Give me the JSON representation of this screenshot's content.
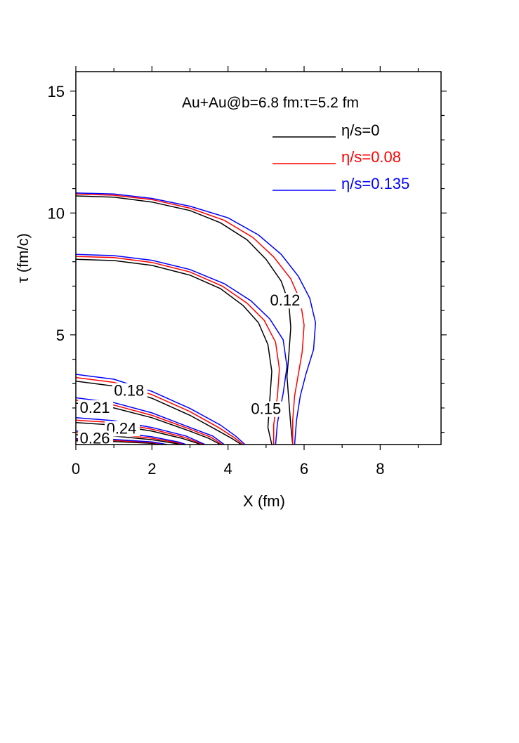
{
  "chart_data": {
    "type": "line",
    "title": "Au+Au@b=6.8 fm:τ=5.2 fm",
    "xlabel": "X (fm)",
    "ylabel": "τ (fm/c)",
    "xlim": [
      0,
      9.6
    ],
    "ylim": [
      0.5,
      15.8
    ],
    "x_ticks": [
      0,
      2,
      4,
      6,
      8
    ],
    "y_ticks": [
      5,
      10,
      15
    ],
    "legend_position": "top-right",
    "series": [
      {
        "name": "η/s=0",
        "color": "#000000",
        "contours": [
          {
            "level": "0.12",
            "points": [
              [
                0,
                10.7
              ],
              [
                1,
                10.65
              ],
              [
                2,
                10.45
              ],
              [
                3,
                10.1
              ],
              [
                3.8,
                9.6
              ],
              [
                4.5,
                8.9
              ],
              [
                5,
                8.1
              ],
              [
                5.4,
                7.2
              ],
              [
                5.6,
                6.3
              ],
              [
                5.65,
                5.3
              ],
              [
                5.6,
                4.2
              ],
              [
                5.55,
                3.3
              ],
              [
                5.6,
                2.3
              ],
              [
                5.65,
                1.3
              ],
              [
                5.7,
                0.5
              ]
            ]
          },
          {
            "level": "0.15",
            "points": [
              [
                0,
                8.1
              ],
              [
                1,
                8.05
              ],
              [
                2,
                7.85
              ],
              [
                3,
                7.45
              ],
              [
                3.8,
                6.9
              ],
              [
                4.4,
                6.2
              ],
              [
                4.8,
                5.5
              ],
              [
                5.05,
                4.6
              ],
              [
                5.15,
                3.5
              ],
              [
                5.1,
                2.4
              ],
              [
                5.05,
                1.2
              ],
              [
                5.15,
                0.5
              ]
            ]
          },
          {
            "level": "0.18",
            "points": [
              [
                0,
                3.1
              ],
              [
                1,
                2.9
              ],
              [
                2,
                2.4
              ],
              [
                3,
                1.7
              ],
              [
                3.7,
                1.1
              ],
              [
                4.1,
                0.75
              ],
              [
                4.35,
                0.5
              ]
            ]
          },
          {
            "level": "0.21",
            "points": [
              [
                0,
                2.2
              ],
              [
                1,
                2.0
              ],
              [
                2,
                1.6
              ],
              [
                3,
                1.05
              ],
              [
                3.5,
                0.75
              ],
              [
                3.8,
                0.5
              ]
            ]
          },
          {
            "level": "0.24",
            "points": [
              [
                0,
                1.4
              ],
              [
                1,
                1.3
              ],
              [
                2,
                1.05
              ],
              [
                2.8,
                0.75
              ],
              [
                3.3,
                0.5
              ]
            ]
          },
          {
            "level": "0.26",
            "points": [
              [
                0,
                0.9
              ],
              [
                1,
                0.85
              ],
              [
                2,
                0.7
              ],
              [
                2.6,
                0.55
              ],
              [
                2.8,
                0.5
              ]
            ]
          },
          {
            "level": "",
            "points": [
              [
                0,
                0.65
              ],
              [
                1,
                0.62
              ],
              [
                2,
                0.55
              ],
              [
                2.3,
                0.5
              ]
            ]
          }
        ]
      },
      {
        "name": "η/s=0.08",
        "color": "#ff0000",
        "contours": [
          {
            "level": "0.12",
            "points": [
              [
                0,
                10.78
              ],
              [
                1,
                10.73
              ],
              [
                2,
                10.55
              ],
              [
                3,
                10.2
              ],
              [
                3.9,
                9.7
              ],
              [
                4.65,
                9.0
              ],
              [
                5.2,
                8.2
              ],
              [
                5.65,
                7.3
              ],
              [
                5.9,
                6.4
              ],
              [
                6.0,
                5.4
              ],
              [
                5.95,
                4.3
              ],
              [
                5.85,
                3.4
              ],
              [
                5.75,
                2.5
              ],
              [
                5.7,
                1.5
              ],
              [
                5.7,
                0.5
              ]
            ]
          },
          {
            "level": "0.15",
            "points": [
              [
                0,
                8.22
              ],
              [
                1,
                8.17
              ],
              [
                2,
                7.97
              ],
              [
                3,
                7.58
              ],
              [
                3.85,
                7.0
              ],
              [
                4.5,
                6.3
              ],
              [
                4.95,
                5.6
              ],
              [
                5.25,
                4.7
              ],
              [
                5.35,
                3.6
              ],
              [
                5.3,
                2.5
              ],
              [
                5.2,
                1.3
              ],
              [
                5.2,
                0.5
              ]
            ]
          },
          {
            "level": "0.18",
            "points": [
              [
                0,
                3.25
              ],
              [
                1,
                3.05
              ],
              [
                2,
                2.55
              ],
              [
                3,
                1.85
              ],
              [
                3.75,
                1.2
              ],
              [
                4.15,
                0.8
              ],
              [
                4.4,
                0.5
              ]
            ]
          },
          {
            "level": "0.21",
            "points": [
              [
                0,
                2.32
              ],
              [
                1,
                2.12
              ],
              [
                2,
                1.7
              ],
              [
                3,
                1.13
              ],
              [
                3.55,
                0.8
              ],
              [
                3.85,
                0.5
              ]
            ]
          },
          {
            "level": "0.24",
            "points": [
              [
                0,
                1.5
              ],
              [
                1,
                1.4
              ],
              [
                2,
                1.13
              ],
              [
                2.85,
                0.8
              ],
              [
                3.35,
                0.5
              ]
            ]
          },
          {
            "level": "0.26",
            "points": [
              [
                0,
                0.98
              ],
              [
                1,
                0.93
              ],
              [
                2,
                0.76
              ],
              [
                2.65,
                0.58
              ],
              [
                2.85,
                0.5
              ]
            ]
          },
          {
            "level": "",
            "points": [
              [
                0,
                0.7
              ],
              [
                1,
                0.67
              ],
              [
                2,
                0.58
              ],
              [
                2.35,
                0.5
              ]
            ]
          }
        ]
      },
      {
        "name": "η/s=0.135",
        "color": "#0000ff",
        "contours": [
          {
            "level": "0.12",
            "points": [
              [
                0,
                10.82
              ],
              [
                1,
                10.78
              ],
              [
                2,
                10.6
              ],
              [
                3,
                10.28
              ],
              [
                4,
                9.8
              ],
              [
                4.8,
                9.1
              ],
              [
                5.4,
                8.3
              ],
              [
                5.85,
                7.4
              ],
              [
                6.15,
                6.5
              ],
              [
                6.3,
                5.5
              ],
              [
                6.25,
                4.4
              ],
              [
                6.05,
                3.4
              ],
              [
                5.9,
                2.5
              ],
              [
                5.8,
                1.5
              ],
              [
                5.75,
                0.5
              ]
            ]
          },
          {
            "level": "0.15",
            "points": [
              [
                0,
                8.3
              ],
              [
                1,
                8.25
              ],
              [
                2,
                8.06
              ],
              [
                3,
                7.68
              ],
              [
                3.9,
                7.1
              ],
              [
                4.6,
                6.4
              ],
              [
                5.1,
                5.65
              ],
              [
                5.45,
                4.8
              ],
              [
                5.55,
                3.7
              ],
              [
                5.45,
                2.6
              ],
              [
                5.3,
                1.4
              ],
              [
                5.25,
                0.5
              ]
            ]
          },
          {
            "level": "0.18",
            "points": [
              [
                0,
                3.38
              ],
              [
                1,
                3.18
              ],
              [
                2,
                2.68
              ],
              [
                3,
                1.98
              ],
              [
                3.8,
                1.3
              ],
              [
                4.2,
                0.85
              ],
              [
                4.45,
                0.5
              ]
            ]
          },
          {
            "level": "0.21",
            "points": [
              [
                0,
                2.42
              ],
              [
                1,
                2.22
              ],
              [
                2,
                1.8
              ],
              [
                3,
                1.2
              ],
              [
                3.6,
                0.85
              ],
              [
                3.9,
                0.5
              ]
            ]
          },
          {
            "level": "0.24",
            "points": [
              [
                0,
                1.6
              ],
              [
                1,
                1.48
              ],
              [
                2,
                1.2
              ],
              [
                2.9,
                0.85
              ],
              [
                3.4,
                0.5
              ]
            ]
          },
          {
            "level": "0.26",
            "points": [
              [
                0,
                1.05
              ],
              [
                1,
                1.0
              ],
              [
                2,
                0.82
              ],
              [
                2.7,
                0.6
              ],
              [
                2.9,
                0.5
              ]
            ]
          },
          {
            "level": "",
            "points": [
              [
                0,
                0.74
              ],
              [
                1,
                0.71
              ],
              [
                2,
                0.61
              ],
              [
                2.4,
                0.5
              ]
            ]
          }
        ]
      }
    ],
    "contour_labels": [
      {
        "text": "0.12",
        "x": 5.5,
        "y": 6.2
      },
      {
        "text": "0.15",
        "x": 5.0,
        "y": 1.75
      },
      {
        "text": "0.18",
        "x": 1.4,
        "y": 2.5
      },
      {
        "text": "0.21",
        "x": 0.5,
        "y": 1.8
      },
      {
        "text": "0.24",
        "x": 1.2,
        "y": 0.95
      },
      {
        "text": "0.26",
        "x": 0.5,
        "y": 0.55
      }
    ]
  }
}
